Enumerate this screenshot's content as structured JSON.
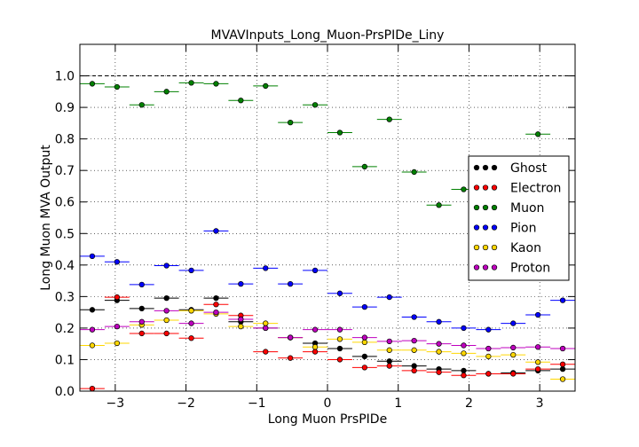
{
  "chart_data": {
    "type": "scatter",
    "title": "MVAVInputs_Long_Muon-PrsPIDe_Liny",
    "xlabel": "Long Muon PrsPIDe",
    "ylabel": "Long Muon MVA Output",
    "xlim": [
      -3.5,
      3.5
    ],
    "ylim": [
      0.0,
      1.1
    ],
    "x_ticks": [
      -3,
      -2,
      -1,
      0,
      1,
      2,
      3
    ],
    "x_tick_labels": [
      "−3",
      "−2",
      "−1",
      "0",
      "1",
      "2",
      "3"
    ],
    "y_ticks": [
      0.0,
      0.1,
      0.2,
      0.3,
      0.4,
      0.5,
      0.6,
      0.7,
      0.8,
      0.9,
      1.0
    ],
    "y_tick_labels": [
      "0.0",
      "0.1",
      "0.2",
      "0.3",
      "0.4",
      "0.5",
      "0.6",
      "0.7",
      "0.8",
      "0.9",
      "1.0"
    ],
    "reference_line": 1.0,
    "grid": true,
    "legend_position": "right",
    "bin_half_width": 0.175,
    "x": [
      -3.325,
      -2.975,
      -2.625,
      -2.275,
      -1.925,
      -1.575,
      -1.225,
      -0.875,
      -0.525,
      -0.175,
      0.175,
      0.525,
      0.875,
      1.225,
      1.575,
      1.925,
      2.275,
      2.625,
      2.975,
      3.325
    ],
    "series": [
      {
        "name": "Ghost",
        "color": "#000000",
        "values": [
          0.258,
          0.288,
          0.262,
          0.295,
          0.258,
          0.295,
          0.22,
          0.2,
          0.17,
          0.152,
          0.135,
          0.11,
          0.095,
          0.08,
          0.07,
          0.065,
          0.055,
          0.058,
          0.065,
          0.07
        ]
      },
      {
        "name": "Electron",
        "color": "#ff0000",
        "values": [
          0.008,
          0.298,
          0.183,
          0.183,
          0.168,
          0.275,
          0.24,
          0.125,
          0.105,
          0.125,
          0.1,
          0.075,
          0.08,
          0.065,
          0.06,
          0.05,
          0.055,
          0.055,
          0.07,
          0.085
        ]
      },
      {
        "name": "Muon",
        "color": "#008000",
        "values": [
          0.975,
          0.965,
          0.908,
          0.95,
          0.978,
          0.975,
          0.922,
          0.968,
          0.852,
          0.908,
          0.82,
          0.712,
          0.862,
          0.695,
          0.59,
          0.64,
          0.51,
          0.53,
          0.815,
          null
        ]
      },
      {
        "name": "Pion",
        "color": "#0000ff",
        "values": [
          0.428,
          0.41,
          0.338,
          0.398,
          0.383,
          0.508,
          0.34,
          0.39,
          0.34,
          0.383,
          0.31,
          0.267,
          0.298,
          0.235,
          0.22,
          0.2,
          0.195,
          0.215,
          0.242,
          0.288
        ]
      },
      {
        "name": "Kaon",
        "color": "#ffd700",
        "values": [
          0.145,
          0.152,
          0.21,
          0.225,
          0.255,
          0.245,
          0.205,
          0.215,
          0.17,
          0.14,
          0.165,
          0.155,
          0.13,
          0.13,
          0.125,
          0.12,
          0.11,
          0.115,
          0.092,
          0.038
        ]
      },
      {
        "name": "Proton",
        "color": "#bf00bf",
        "values": [
          0.195,
          0.205,
          0.22,
          0.255,
          0.215,
          0.25,
          0.228,
          0.2,
          0.17,
          0.195,
          0.195,
          0.17,
          0.158,
          0.16,
          0.15,
          0.145,
          0.135,
          0.138,
          0.14,
          0.135
        ]
      }
    ]
  }
}
